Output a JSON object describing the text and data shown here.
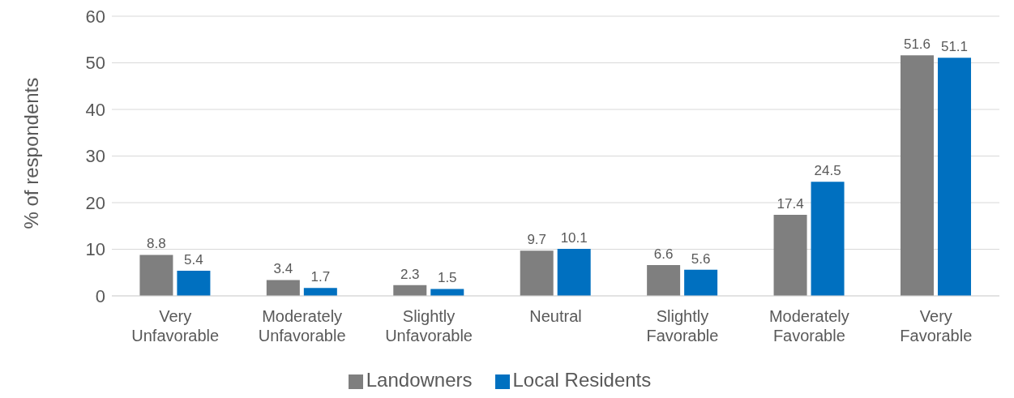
{
  "chart_data": {
    "type": "bar",
    "ylabel": "% of respondents",
    "categories": [
      "Very Unfavorable",
      "Moderately Unfavorable",
      "Slightly Unfavorable",
      "Neutral",
      "Slightly Favorable",
      "Moderately Favorable",
      "Very Favorable"
    ],
    "series": [
      {
        "name": "Landowners",
        "color": "#7f7f7f",
        "values": [
          8.8,
          3.4,
          2.3,
          9.7,
          6.6,
          17.4,
          51.6
        ]
      },
      {
        "name": "Local Residents",
        "color": "#0070c0",
        "values": [
          5.4,
          1.7,
          1.5,
          10.1,
          5.6,
          24.5,
          51.1
        ]
      }
    ],
    "ylim": [
      0,
      60
    ],
    "yticks": [
      0,
      10,
      20,
      30,
      40,
      50,
      60
    ],
    "grid": "y",
    "legend": "bottom",
    "data_labels": true
  }
}
